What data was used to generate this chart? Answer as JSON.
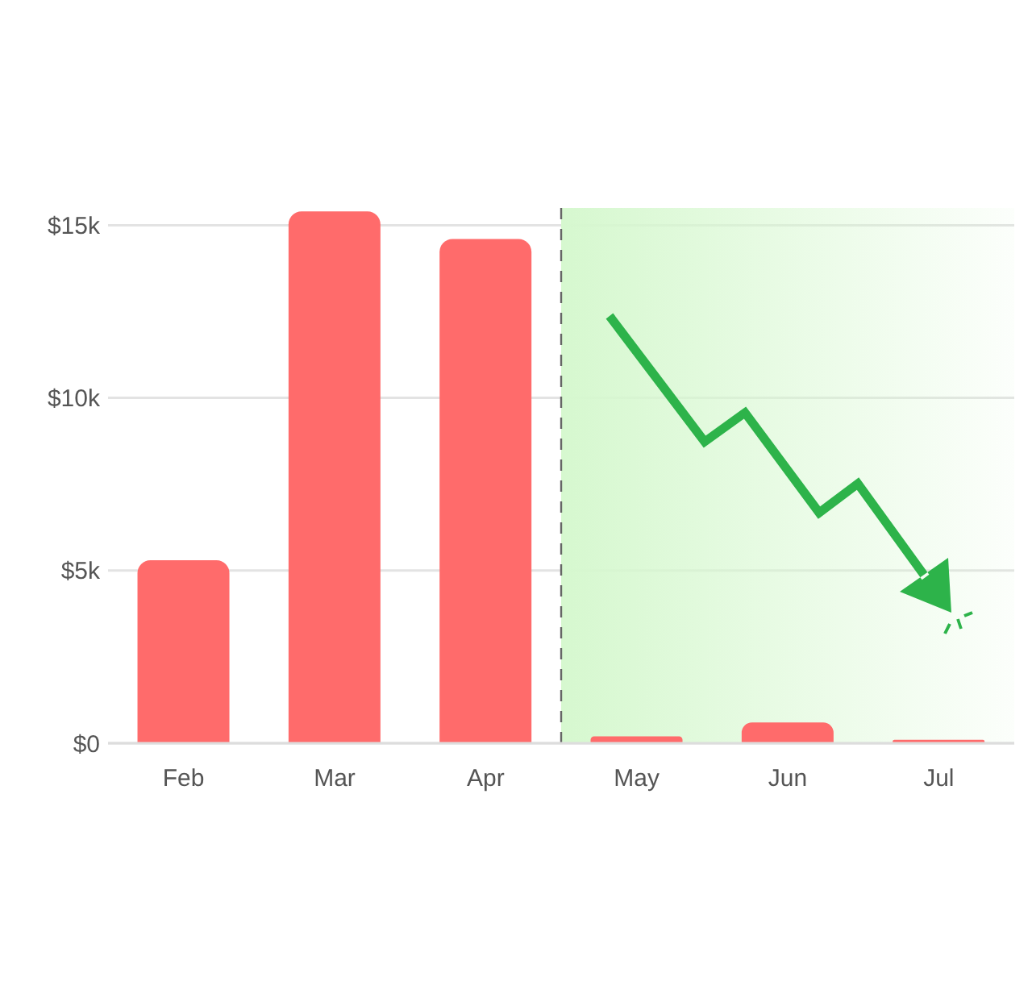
{
  "chart_data": {
    "type": "bar",
    "categories": [
      "Feb",
      "Mar",
      "Apr",
      "May",
      "Jun",
      "Jul"
    ],
    "values": [
      5300,
      15400,
      14600,
      200,
      600,
      100
    ],
    "color": "#ff6b6b",
    "ylim": [
      0,
      15500
    ],
    "yticks": [
      {
        "value": 0,
        "label": "$0"
      },
      {
        "value": 5000,
        "label": "$5k"
      },
      {
        "value": 10000,
        "label": "$10k"
      },
      {
        "value": 15000,
        "label": "$15k"
      }
    ],
    "grid": "y",
    "bands": [
      {
        "axis": "x",
        "from": "May",
        "to": "Jul",
        "color": "#d6f8cf"
      }
    ],
    "ref_lines": [
      {
        "axis": "x",
        "value": "May",
        "color": "#666666",
        "line_style": "dashed"
      }
    ]
  }
}
